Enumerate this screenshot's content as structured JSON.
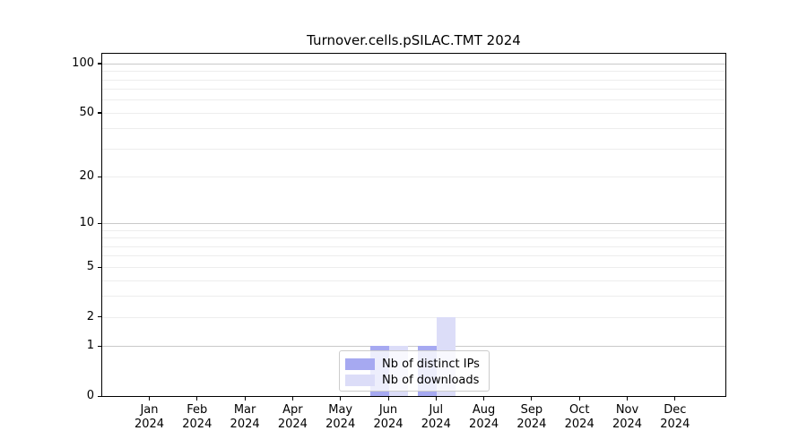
{
  "chart_data": {
    "type": "bar",
    "title": "Turnover.cells.pSILAC.TMT 2024",
    "xlabel": "",
    "ylabel": "",
    "x_tick_year": "2024",
    "x_tick_months": [
      "Jan",
      "Feb",
      "Mar",
      "Apr",
      "May",
      "Jun",
      "Jul",
      "Aug",
      "Sep",
      "Oct",
      "Nov",
      "Dec"
    ],
    "categories": [
      "Jan 2024",
      "Feb 2024",
      "Mar 2024",
      "Apr 2024",
      "May 2024",
      "Jun 2024",
      "Jul 2024",
      "Aug 2024",
      "Sep 2024",
      "Oct 2024",
      "Nov 2024",
      "Dec 2024"
    ],
    "series": [
      {
        "name": "Nb of distinct IPs",
        "color": "#a6a9f1",
        "values": [
          0,
          0,
          0,
          0,
          0,
          1,
          1,
          0,
          0,
          0,
          0,
          0
        ]
      },
      {
        "name": "Nb of downloads",
        "color": "#dcddf8",
        "values": [
          0,
          0,
          0,
          0,
          0,
          1,
          2,
          0,
          0,
          0,
          0,
          0
        ]
      }
    ],
    "y_scale": "log1p",
    "ylim": [
      0,
      114.5
    ],
    "y_ticks": [
      0,
      1,
      2,
      5,
      10,
      20,
      50,
      100
    ],
    "y_tick_labels": [
      "0",
      "1",
      "2",
      "5",
      "10",
      "20",
      "50",
      "100"
    ],
    "grid": {
      "dark_lines": [
        1,
        10,
        100
      ],
      "light_lines": [
        2,
        3,
        4,
        6,
        7,
        8,
        9,
        5,
        20,
        30,
        40,
        50,
        60,
        70,
        80,
        90
      ]
    },
    "legend_position": "lower center"
  }
}
